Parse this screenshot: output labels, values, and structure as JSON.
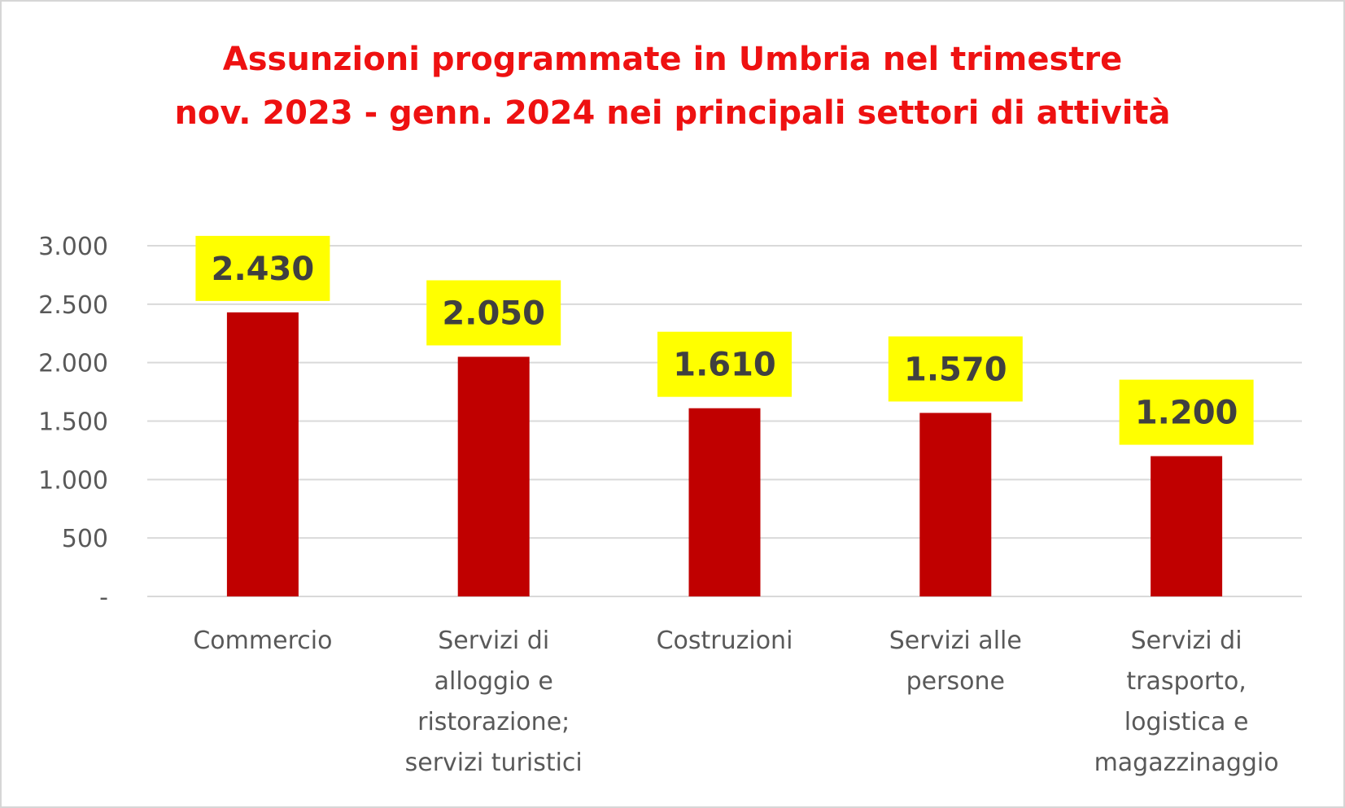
{
  "chart_data": {
    "type": "bar",
    "title_lines": [
      "Assunzioni programmate in Umbria nel trimestre",
      "nov. 2023 - genn. 2024 nei principali settori di attività"
    ],
    "categories": [
      [
        "Commercio"
      ],
      [
        "Servizi di",
        "alloggio e",
        "ristorazione;",
        "servizi turistici"
      ],
      [
        "Costruzioni"
      ],
      [
        "Servizi alle",
        "persone"
      ],
      [
        "Servizi di",
        "trasporto,",
        "logistica e",
        "magazzinaggio"
      ]
    ],
    "values": [
      2430,
      2050,
      1610,
      1570,
      1200
    ],
    "data_labels": [
      "2.430",
      "2.050",
      "1.610",
      "1.570",
      "1.200"
    ],
    "yticks": [
      0,
      500,
      1000,
      1500,
      2000,
      2500,
      3000
    ],
    "ytick_labels": [
      "-",
      "500",
      "1.000",
      "1.500",
      "2.000",
      "2.500",
      "3.000"
    ],
    "ylim": [
      0,
      3000
    ],
    "grid": true,
    "legend": "none",
    "colors": {
      "bar": "#c00000",
      "label_highlight": "#ffff00",
      "title": "#ee1111",
      "gridline": "#d9d9d9",
      "axis_text": "#595959",
      "label_text": "#404040"
    }
  }
}
